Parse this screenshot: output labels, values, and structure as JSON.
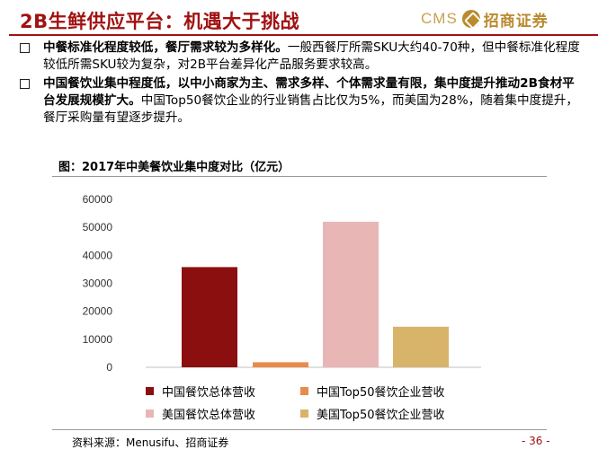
{
  "header": {
    "title": "2B生鲜供应平台：机遇大于挑战",
    "logo_latin": "CMS",
    "logo_cn": "招商证券"
  },
  "bullets": [
    {
      "bold": "中餐标准化程度较低，餐厅需求较为多样化。",
      "text": "一般西餐厅所需SKU大约40-70种，但中餐标准化程度较低所需SKU较为复杂，对2B平台差异化产品服务要求较高。"
    },
    {
      "bold": "中国餐饮业集中程度低，以中小商家为主、需求多样、个体需求量有限，集中度提升推动2B食材平台发展规模扩大。",
      "text": "中国Top50餐饮企业的行业销售占比仅为5%，而美国为28%，随着集中度提升，餐厅采购量有望逐步提升。"
    }
  ],
  "figure_title": "图：2017年中美餐饮业集中度对比（亿元）",
  "chart_data": {
    "type": "bar",
    "title": "2017年中美餐饮业集中度对比（亿元）",
    "ylim": [
      0,
      60000
    ],
    "yticks": [
      "0",
      "10000",
      "20000",
      "30000",
      "40000",
      "50000",
      "60000"
    ],
    "grid": false,
    "legend_position": "bottom",
    "series": [
      {
        "name": "中国餐饮总体营收",
        "value": 35800,
        "color": "#8b0f0f"
      },
      {
        "name": "中国Top50餐饮企业营收",
        "value": 1800,
        "color": "#e98b4b"
      },
      {
        "name": "美国餐饮总体营收",
        "value": 52000,
        "color": "#e9b6b6"
      },
      {
        "name": "美国Top50餐饮企业营收",
        "value": 14500,
        "color": "#d8b36a"
      }
    ]
  },
  "footer": {
    "source": "资料来源：Menusifu、招商证券",
    "page": "- 36 -"
  }
}
